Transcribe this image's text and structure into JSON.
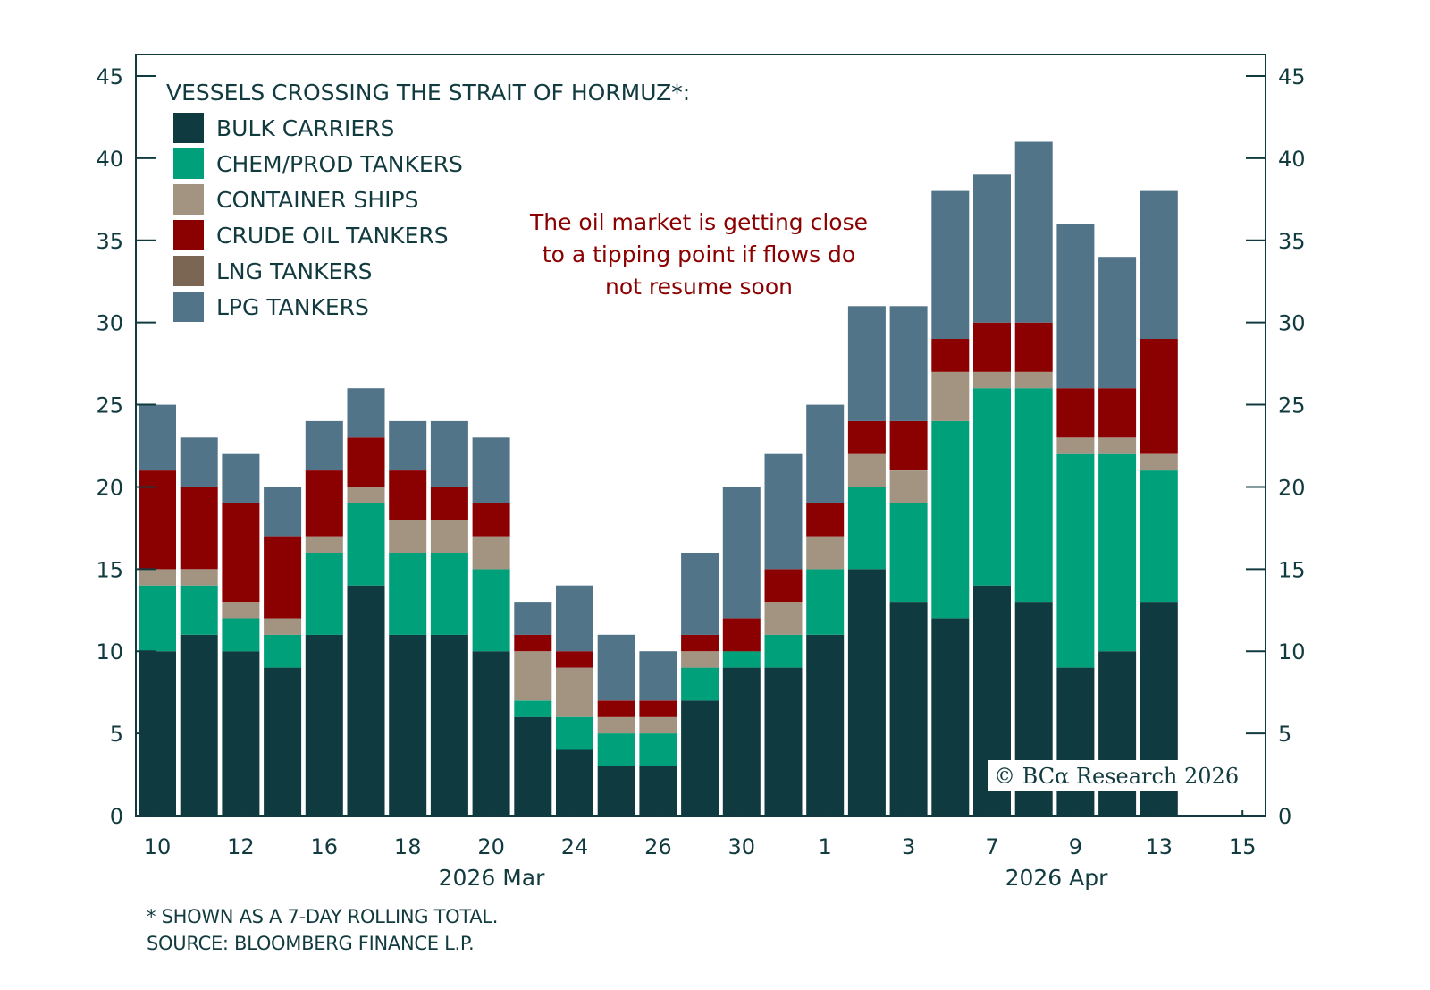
{
  "chart_data": {
    "type": "bar",
    "stacked": true,
    "title": "VESSELS CROSSING THE STRAIT OF HORMUZ*:",
    "xlabel": "",
    "ylabel": "",
    "ylim": [
      0,
      45
    ],
    "yticks": [
      0,
      5,
      10,
      15,
      20,
      25,
      30,
      35,
      40,
      45
    ],
    "ytick_labels": [
      "0",
      "5",
      "10",
      "15",
      "20",
      "25",
      "30",
      "35",
      "40",
      "45"
    ],
    "dual_y_axis": true,
    "grid": false,
    "legend_position": "top-left",
    "x_tick_labels": [
      "10",
      "12",
      "16",
      "18",
      "20",
      "24",
      "26",
      "30",
      "1",
      "3",
      "7",
      "9",
      "13",
      "15"
    ],
    "month_labels": [
      {
        "label": "2026 Mar"
      },
      {
        "label": "2026 Apr"
      }
    ],
    "categories": [
      "Mar 10",
      "Mar 11",
      "Mar 12",
      "Mar 13",
      "Mar 16",
      "Mar 17",
      "Mar 18",
      "Mar 19",
      "Mar 20",
      "Mar 23",
      "Mar 24",
      "Mar 25",
      "Mar 26",
      "Mar 27",
      "Mar 30",
      "Mar 31",
      "Apr 1",
      "Apr 2",
      "Apr 3",
      "Apr 6",
      "Apr 7",
      "Apr 8",
      "Apr 9",
      "Apr 10",
      "Apr 13"
    ],
    "series": [
      {
        "name": "BULK CARRIERS",
        "color": "#0f3a40",
        "values": [
          10,
          11,
          10,
          9,
          11,
          14,
          11,
          11,
          10,
          6,
          4,
          3,
          3,
          7,
          9,
          9,
          11,
          15,
          13,
          12,
          14,
          13,
          9,
          10,
          13
        ]
      },
      {
        "name": "CHEM/PROD TANKERS",
        "color": "#00a07a",
        "values": [
          4,
          3,
          2,
          2,
          5,
          5,
          5,
          5,
          5,
          1,
          2,
          2,
          2,
          2,
          1,
          2,
          4,
          5,
          6,
          12,
          12,
          13,
          13,
          12,
          8
        ]
      },
      {
        "name": "CONTAINER SHIPS",
        "color": "#a39482",
        "values": [
          1,
          1,
          1,
          1,
          1,
          1,
          2,
          2,
          2,
          3,
          3,
          1,
          1,
          1,
          0,
          2,
          2,
          2,
          2,
          3,
          1,
          1,
          1,
          1,
          1
        ]
      },
      {
        "name": "CRUDE OIL TANKERS",
        "color": "#8b0000",
        "values": [
          6,
          5,
          6,
          5,
          4,
          3,
          3,
          2,
          2,
          1,
          1,
          1,
          1,
          1,
          2,
          2,
          2,
          2,
          3,
          2,
          3,
          3,
          3,
          3,
          7
        ]
      },
      {
        "name": "LNG TANKERS",
        "color": "#7a6652",
        "values": [
          0,
          0,
          0,
          0,
          0,
          0,
          0,
          0,
          0,
          0,
          0,
          0,
          0,
          0,
          0,
          0,
          0,
          0,
          0,
          0,
          0,
          0,
          0,
          0,
          0
        ]
      },
      {
        "name": "LPG TANKERS",
        "color": "#527489",
        "values": [
          4,
          3,
          3,
          3,
          3,
          3,
          3,
          4,
          4,
          2,
          4,
          4,
          3,
          5,
          8,
          7,
          6,
          7,
          7,
          9,
          9,
          11,
          10,
          8,
          9
        ]
      }
    ],
    "annotations": [
      {
        "text_lines": [
          "The oil market is getting close",
          "to a tipping point if flows do",
          "not resume soon"
        ],
        "color": "#8b0000"
      }
    ],
    "copyright": "© BCα Research 2026"
  },
  "footnotes": {
    "line1": "* SHOWN AS A 7-DAY ROLLING TOTAL.",
    "line2": "SOURCE: BLOOMBERG FINANCE L.P."
  }
}
